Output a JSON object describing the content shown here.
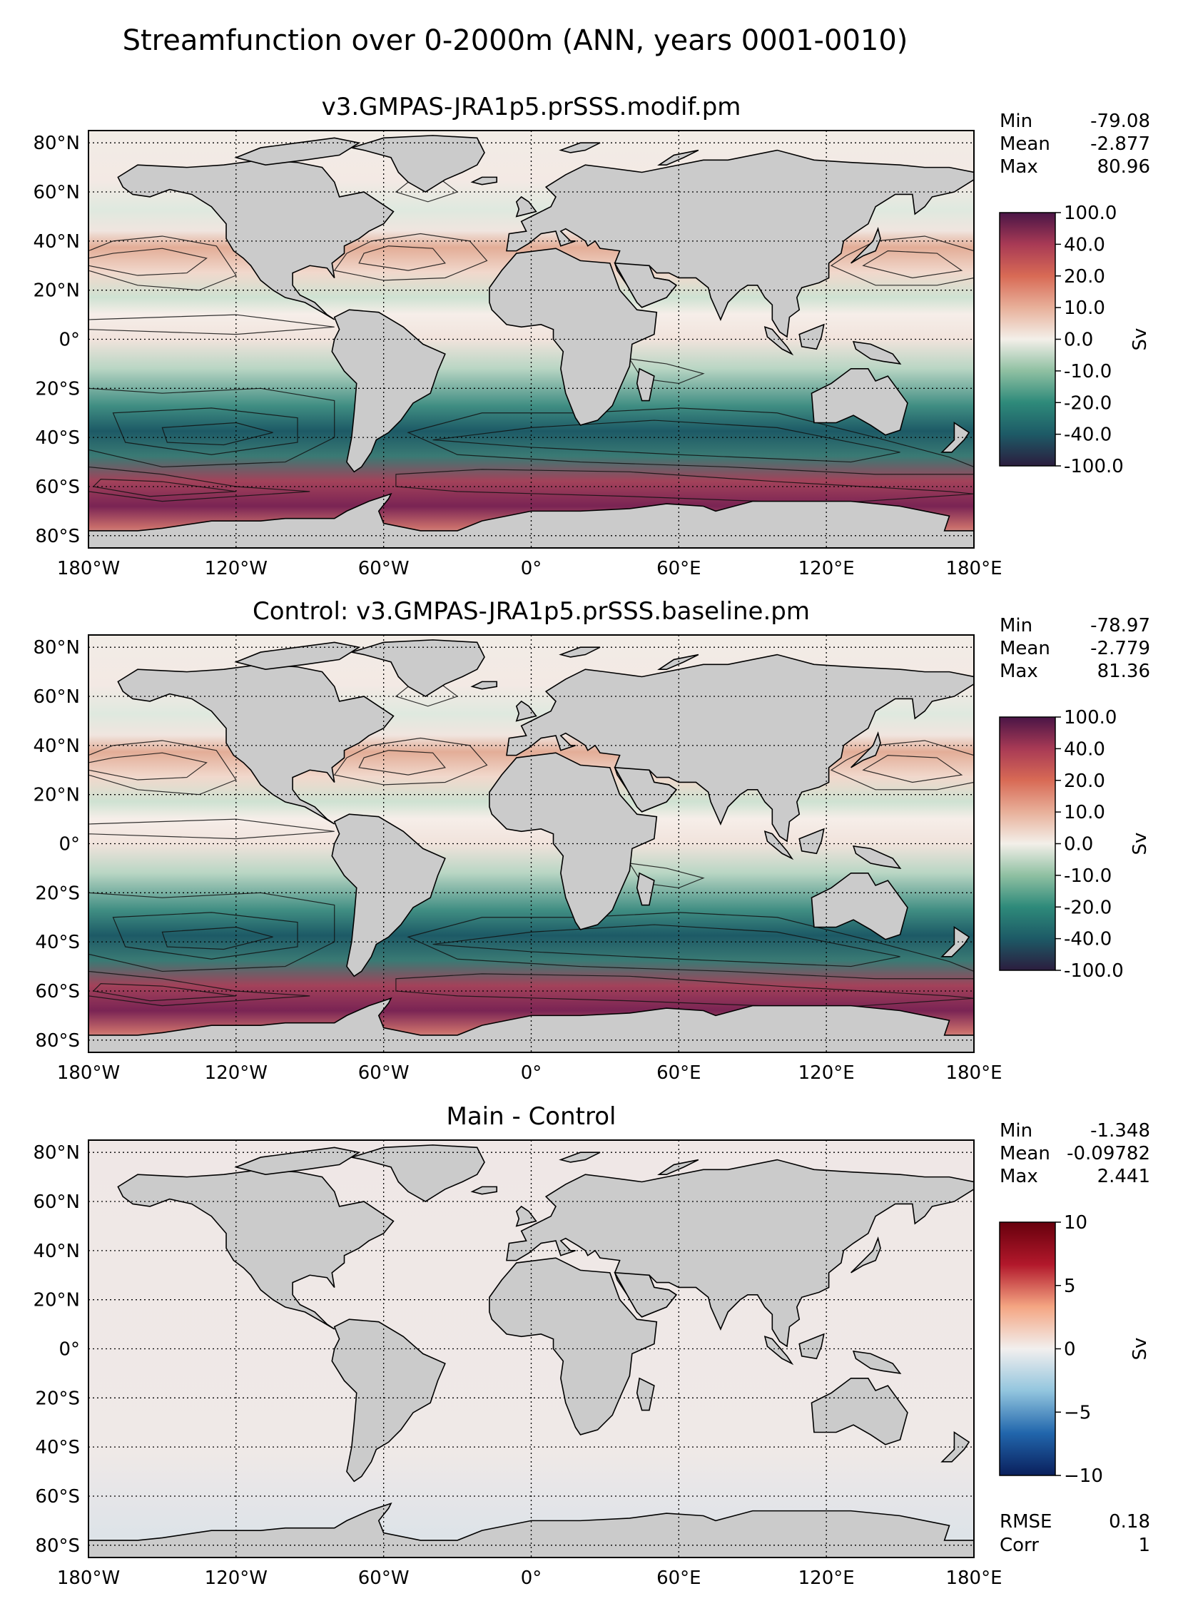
{
  "figure_title": "Streamfunction over 0-2000m (ANN, years 0001-0010)",
  "chart_data": [
    {
      "type": "heatmap",
      "title": "v3.GMPAS-JRA1p5.prSSS.modif.pm",
      "xlabel": "",
      "ylabel": "",
      "xlim": [
        -180,
        180
      ],
      "ylim": [
        -85,
        85
      ],
      "x_ticks": [
        "180°W",
        "120°W",
        "60°W",
        "0°",
        "60°E",
        "120°E",
        "180°E"
      ],
      "y_ticks": [
        "80°N",
        "60°N",
        "40°N",
        "20°N",
        "0°",
        "20°S",
        "40°S",
        "60°S",
        "80°S"
      ],
      "grid": "dotted",
      "stats": [
        {
          "label": "Min",
          "value": "-79.08"
        },
        {
          "label": "Mean",
          "value": "-2.877"
        },
        {
          "label": "Max",
          "value": "80.96"
        }
      ],
      "colorbar": {
        "label": "Sv",
        "levels": [
          -100,
          -40,
          -20,
          -10,
          0,
          10,
          20,
          40,
          100
        ],
        "tick_labels": [
          "100.0",
          "40.0",
          "20.0",
          "10.0",
          "0.0",
          "-10.0",
          "-20.0",
          "-40.0",
          "-100.0"
        ],
        "colormap": "balance-curl",
        "colors": [
          "#2b1d3e",
          "#1d5a66",
          "#2e8a7a",
          "#8fc0a2",
          "#f3efe9",
          "#e8b09a",
          "#d86a55",
          "#a83a55",
          "#4a1546"
        ]
      }
    },
    {
      "type": "heatmap",
      "title": "Control: v3.GMPAS-JRA1p5.prSSS.baseline.pm",
      "xlabel": "",
      "ylabel": "",
      "xlim": [
        -180,
        180
      ],
      "ylim": [
        -85,
        85
      ],
      "x_ticks": [
        "180°W",
        "120°W",
        "60°W",
        "0°",
        "60°E",
        "120°E",
        "180°E"
      ],
      "y_ticks": [
        "80°N",
        "60°N",
        "40°N",
        "20°N",
        "0°",
        "20°S",
        "40°S",
        "60°S",
        "80°S"
      ],
      "grid": "dotted",
      "stats": [
        {
          "label": "Min",
          "value": "-78.97"
        },
        {
          "label": "Mean",
          "value": "-2.779"
        },
        {
          "label": "Max",
          "value": "81.36"
        }
      ],
      "colorbar": {
        "label": "Sv",
        "levels": [
          -100,
          -40,
          -20,
          -10,
          0,
          10,
          20,
          40,
          100
        ],
        "tick_labels": [
          "100.0",
          "40.0",
          "20.0",
          "10.0",
          "0.0",
          "-10.0",
          "-20.0",
          "-40.0",
          "-100.0"
        ],
        "colormap": "balance-curl",
        "colors": [
          "#2b1d3e",
          "#1d5a66",
          "#2e8a7a",
          "#8fc0a2",
          "#f3efe9",
          "#e8b09a",
          "#d86a55",
          "#a83a55",
          "#4a1546"
        ]
      }
    },
    {
      "type": "heatmap",
      "title": "Main - Control",
      "xlabel": "",
      "ylabel": "",
      "xlim": [
        -180,
        180
      ],
      "ylim": [
        -85,
        85
      ],
      "x_ticks": [
        "180°W",
        "120°W",
        "60°W",
        "0°",
        "60°E",
        "120°E",
        "180°E"
      ],
      "y_ticks": [
        "80°N",
        "60°N",
        "40°N",
        "20°N",
        "0°",
        "20°S",
        "40°S",
        "60°S",
        "80°S"
      ],
      "grid": "dotted",
      "stats": [
        {
          "label": "Min",
          "value": "-1.348"
        },
        {
          "label": "Mean",
          "value": "-0.09782"
        },
        {
          "label": "Max",
          "value": "2.441"
        }
      ],
      "extra_stats": [
        {
          "label": "RMSE",
          "value": "0.18"
        },
        {
          "label": "Corr",
          "value": "1"
        }
      ],
      "colorbar": {
        "label": "Sv",
        "levels": [
          -10,
          -5,
          0,
          5,
          10
        ],
        "tick_labels": [
          "10",
          "5",
          "0",
          "−5",
          "−10"
        ],
        "colormap": "RdBu_r",
        "colors": [
          "#0a1f5c",
          "#2166ac",
          "#92c5de",
          "#f2efee",
          "#f4a582",
          "#b2182b",
          "#67000d"
        ]
      }
    }
  ]
}
